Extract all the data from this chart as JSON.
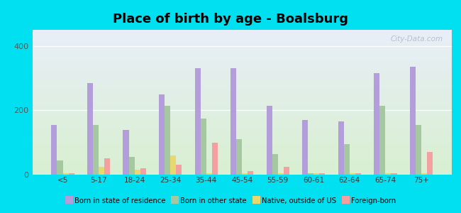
{
  "title": "Place of birth by age - Boalsburg",
  "categories": [
    "<5",
    "5-17",
    "18-24",
    "25-34",
    "35-44",
    "45-54",
    "55-59",
    "60-61",
    "62-64",
    "65-74",
    "75+"
  ],
  "series": {
    "Born in state of residence": {
      "color": "#b39ddb",
      "values": [
        155,
        285,
        140,
        250,
        330,
        330,
        215,
        170,
        165,
        315,
        335
      ]
    },
    "Born in other state": {
      "color": "#a5c8a0",
      "values": [
        45,
        155,
        55,
        215,
        175,
        110,
        65,
        5,
        95,
        215,
        155
      ]
    },
    "Native, outside of US": {
      "color": "#e8d870",
      "values": [
        5,
        25,
        15,
        60,
        5,
        5,
        5,
        5,
        5,
        5,
        5
      ]
    },
    "Foreign-born": {
      "color": "#f4a0a0",
      "values": [
        5,
        50,
        20,
        30,
        100,
        10,
        25,
        5,
        5,
        5,
        70
      ]
    }
  },
  "ylim": [
    0,
    450
  ],
  "yticks": [
    0,
    200,
    400
  ],
  "figure_background": "#00e0f0",
  "bar_width": 0.16,
  "title_fontsize": 13,
  "watermark": "City-Data.com"
}
